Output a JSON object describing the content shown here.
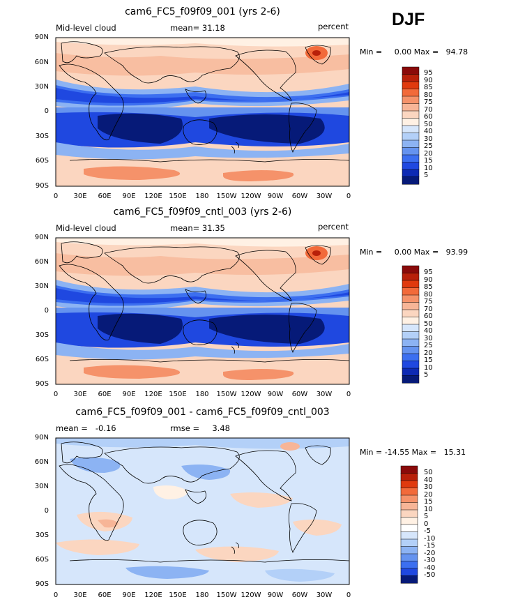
{
  "season": "DJF",
  "colorbar_mean": {
    "labels": [
      "95",
      "90",
      "85",
      "80",
      "75",
      "70",
      "60",
      "50",
      "40",
      "30",
      "25",
      "20",
      "15",
      "10",
      "5"
    ],
    "colors": [
      "#8a0a0a",
      "#b8200a",
      "#e03a0e",
      "#f26a3a",
      "#f5926a",
      "#f7b597",
      "#fbd6c0",
      "#fff1e4",
      "#d6e6fb",
      "#b3d0f8",
      "#8cb3f3",
      "#6593ef",
      "#3c6ff0",
      "#1f48e0",
      "#0d2ab4",
      "#061a78"
    ]
  },
  "colorbar_diff": {
    "labels": [
      "50",
      "40",
      "30",
      "20",
      "15",
      "10",
      "5",
      "0",
      "-5",
      "-10",
      "-15",
      "-20",
      "-30",
      "-40",
      "-50"
    ],
    "colors": [
      "#8a0a0a",
      "#b8200a",
      "#e03a0e",
      "#f26a3a",
      "#f5926a",
      "#f7b597",
      "#fbd6c0",
      "#fff1e4",
      "#ffffff",
      "#d6e6fb",
      "#b3d0f8",
      "#8cb3f3",
      "#6593ef",
      "#3c6ff0",
      "#1f48e0",
      "#061a78"
    ]
  },
  "axes": {
    "lat_labels": [
      "90N",
      "60N",
      "30N",
      "0",
      "30S",
      "60S",
      "90S"
    ],
    "lon_labels": [
      "0",
      "30E",
      "60E",
      "90E",
      "120E",
      "150E",
      "180",
      "150W",
      "120W",
      "90W",
      "60W",
      "30W",
      "0"
    ]
  },
  "panels": [
    {
      "title": "cam6_FC5_f09f09_001 (yrs 2-6)",
      "left_label": "Mid-level cloud",
      "mid_label": "mean=  31.18",
      "right_label": "percent",
      "min_max": "Min =     0.00 Max =   94.78",
      "kind": "mean"
    },
    {
      "title": "cam6_FC5_f09f09_cntl_003 (yrs 2-6)",
      "left_label": "Mid-level cloud",
      "mid_label": "mean=  31.35",
      "right_label": "percent",
      "min_max": "Min =     0.00 Max =   93.99",
      "kind": "mean"
    },
    {
      "title": "cam6_FC5_f09f09_001 - cam6_FC5_f09f09_cntl_003",
      "left_label": "mean =   -0.16",
      "mid_label": "rmse =     3.48",
      "right_label": "",
      "min_max": "Min = -14.55 Max =   15.31",
      "kind": "diff"
    }
  ]
}
